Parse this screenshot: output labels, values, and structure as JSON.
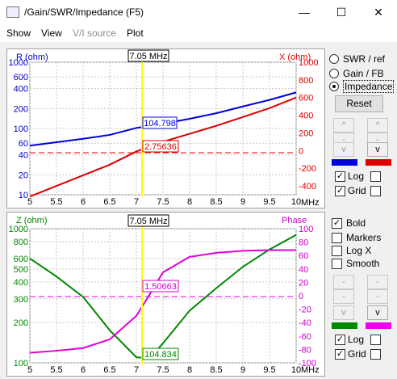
{
  "window": {
    "title": "/Gain/SWR/Impedance (F5)",
    "minimize": "—",
    "maximize": "☐",
    "close": "✕"
  },
  "menu": [
    "Show",
    "View",
    "V/I source",
    "Plot"
  ],
  "colors": {
    "blue": "#0000dd",
    "red": "#dd0000",
    "green": "#008800",
    "magenta": "#dd00dd",
    "marker": "#ffff00",
    "axis_left_top": "#0000c8",
    "axis_right_top": "#dd0000",
    "axis_left_bottom": "#008800",
    "axis_right_bottom": "#cc00cc"
  },
  "top_plot": {
    "left_title": "R (ohm)",
    "right_title": "X (ohm)",
    "x_unit": "MHz",
    "marker_label": "7.05 MHz",
    "left_ticks": [
      "10",
      "20",
      "40",
      "60",
      "100",
      "200",
      "400",
      "600",
      "1000"
    ],
    "right_ticks": [
      "-400",
      "-200",
      "0",
      "200",
      "400",
      "600",
      "800",
      "1000"
    ],
    "x_ticks": [
      "5",
      "5.5",
      "6",
      "6.5",
      "7",
      "7.5",
      "8",
      "8.5",
      "9",
      "9.5",
      "10"
    ],
    "readout_r": "104.798",
    "readout_x": "2.75636"
  },
  "bottom_plot": {
    "left_title": "Z (ohm)",
    "right_title": "Phase",
    "x_unit": "MHz",
    "marker_label": "7.05 MHz",
    "left_ticks": [
      "100",
      "200",
      "300",
      "400",
      "500",
      "600",
      "800",
      "1000"
    ],
    "right_ticks": [
      "-100",
      "-80",
      "-60",
      "-40",
      "-20",
      "0",
      "20",
      "40",
      "60",
      "80",
      "100"
    ],
    "x_ticks": [
      "5",
      "5.5",
      "6",
      "6.5",
      "7",
      "7.5",
      "8",
      "8.5",
      "9",
      "9.5",
      "10"
    ],
    "readout_phase": "1.50663",
    "readout_z": "104.834"
  },
  "chart_data": [
    {
      "type": "line",
      "x": [
        5,
        5.5,
        6,
        6.5,
        7,
        7.5,
        8,
        8.5,
        9,
        9.5,
        10
      ],
      "series": [
        {
          "name": "R (ohm)",
          "values": [
            55,
            62,
            70,
            80,
            102,
            118,
            140,
            170,
            215,
            270,
            350
          ]
        },
        {
          "name": "X (ohm)",
          "values": [
            -520,
            -400,
            -280,
            -160,
            -10,
            100,
            190,
            280,
            380,
            480,
            600
          ]
        }
      ],
      "left_range": [
        10,
        1000
      ],
      "right_range": [
        -500,
        1000
      ],
      "x_range": [
        5,
        10
      ],
      "marker_x": 7.05
    },
    {
      "type": "line",
      "x": [
        5,
        5.5,
        6,
        6.5,
        7,
        7.25,
        7.5,
        8,
        8.5,
        9,
        9.5,
        10
      ],
      "series": [
        {
          "name": "Z (ohm)",
          "values": [
            600,
            440,
            310,
            175,
            110,
            108,
            140,
            245,
            360,
            520,
            700,
            900
          ]
        },
        {
          "name": "Phase",
          "values": [
            -85,
            -82,
            -78,
            -65,
            -30,
            2,
            35,
            58,
            64,
            67,
            68,
            68
          ]
        }
      ],
      "left_range": [
        100,
        1000
      ],
      "right_range": [
        -100,
        100
      ],
      "x_range": [
        5,
        10
      ],
      "marker_x": 7.05
    }
  ],
  "panel_top": {
    "radio_swr": "SWR / ref",
    "radio_gain": "Gain / FB",
    "radio_impedance": "Impedance",
    "reset": "Reset",
    "log": "Log",
    "grid": "Grid",
    "up": "^",
    "down": "-",
    "v": "v"
  },
  "panel_bottom": {
    "bold": "Bold",
    "markers": "Markers",
    "logx": "Log X",
    "smooth": "Smooth",
    "log": "Log",
    "grid": "Grid",
    "up": "-",
    "down": "-",
    "v": "v"
  }
}
